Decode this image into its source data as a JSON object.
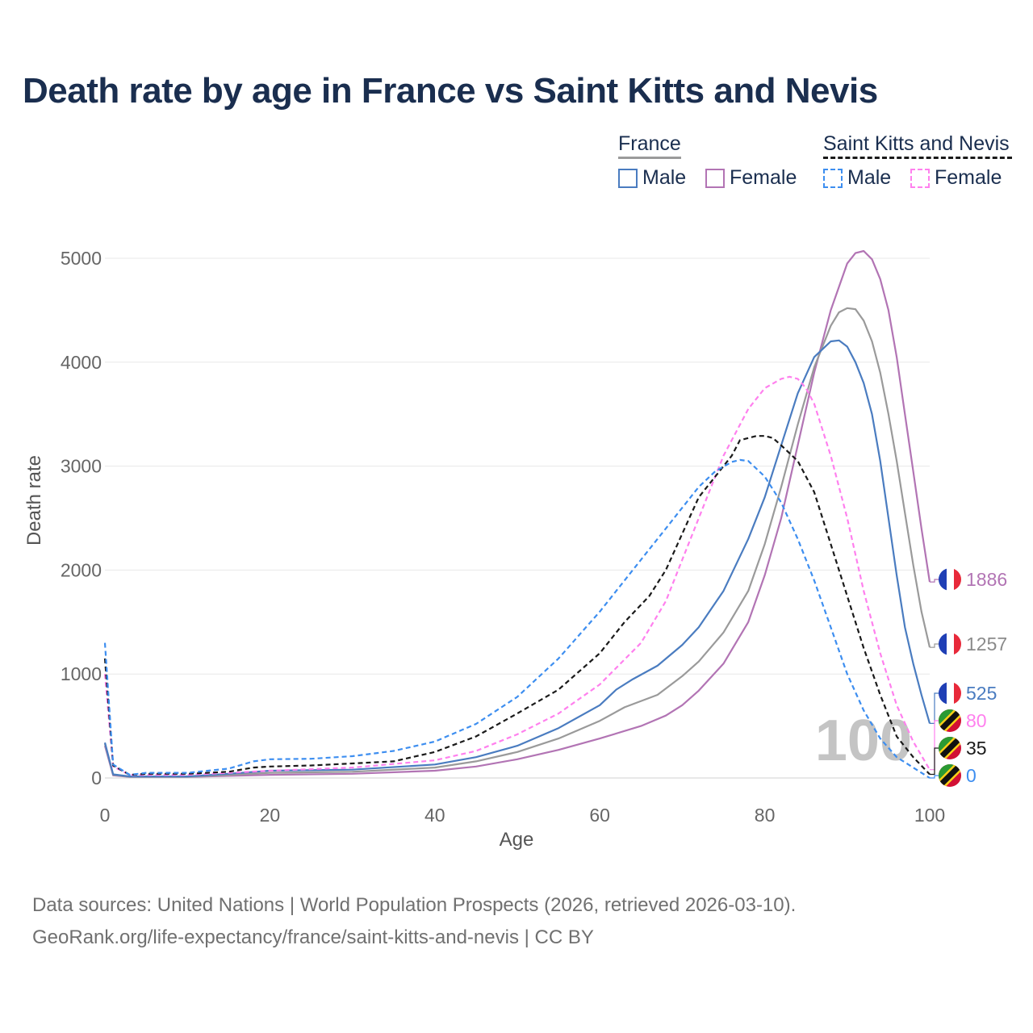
{
  "title": "Death rate by age in France vs Saint Kitts and Nevis",
  "legend": {
    "groups": [
      {
        "name": "France",
        "line_style": "solid",
        "line_color": "#9a9a9a",
        "items": [
          {
            "label": "Male",
            "color": "#4a7cc0"
          },
          {
            "label": "Female",
            "color": "#b274b4"
          }
        ]
      },
      {
        "name": "Saint Kitts and Nevis",
        "line_style": "dashed",
        "line_color": "#1a1a1a",
        "items": [
          {
            "label": "Male",
            "color": "#3d8ef0"
          },
          {
            "label": "Female",
            "color": "#ff80ee"
          }
        ]
      }
    ]
  },
  "watermark": "100",
  "footer": {
    "line1": "Data sources: United Nations | World Population Prospects (2026, retrieved 2026-03-10).",
    "line2": "GeoRank.org/life-expectancy/france/saint-kitts-and-nevis | CC BY"
  },
  "chart_data": {
    "type": "line",
    "title": "Death rate by age in France vs Saint Kitts and Nevis",
    "xlabel": "Age",
    "ylabel": "Death rate",
    "xlim": [
      0,
      100
    ],
    "ylim": [
      0,
      5000
    ],
    "xticks": [
      0,
      20,
      40,
      60,
      80,
      100
    ],
    "yticks": [
      0,
      1000,
      2000,
      3000,
      4000,
      5000
    ],
    "grid": true,
    "series": [
      {
        "name": "France Female",
        "country": "France",
        "sex": "Female",
        "color": "#b274b4",
        "dash": false,
        "points": [
          [
            0,
            310
          ],
          [
            1,
            25
          ],
          [
            3,
            10
          ],
          [
            5,
            10
          ],
          [
            10,
            10
          ],
          [
            15,
            20
          ],
          [
            20,
            30
          ],
          [
            30,
            40
          ],
          [
            40,
            70
          ],
          [
            45,
            110
          ],
          [
            50,
            180
          ],
          [
            55,
            270
          ],
          [
            60,
            380
          ],
          [
            65,
            500
          ],
          [
            68,
            600
          ],
          [
            70,
            700
          ],
          [
            72,
            840
          ],
          [
            75,
            1100
          ],
          [
            78,
            1500
          ],
          [
            80,
            1950
          ],
          [
            82,
            2500
          ],
          [
            84,
            3200
          ],
          [
            86,
            3900
          ],
          [
            88,
            4500
          ],
          [
            90,
            4950
          ],
          [
            91,
            5050
          ],
          [
            92,
            5070
          ],
          [
            93,
            4990
          ],
          [
            94,
            4800
          ],
          [
            95,
            4500
          ],
          [
            96,
            4050
          ],
          [
            97,
            3500
          ],
          [
            98,
            2950
          ],
          [
            99,
            2400
          ],
          [
            100,
            1886
          ]
        ],
        "end_label": "1886",
        "label_color": "#b274b4"
      },
      {
        "name": "France Total",
        "country": "France",
        "sex": "Total",
        "color": "#9a9a9a",
        "dash": false,
        "points": [
          [
            0,
            330
          ],
          [
            1,
            30
          ],
          [
            3,
            12
          ],
          [
            5,
            12
          ],
          [
            10,
            12
          ],
          [
            15,
            30
          ],
          [
            20,
            50
          ],
          [
            30,
            60
          ],
          [
            40,
            100
          ],
          [
            45,
            160
          ],
          [
            50,
            250
          ],
          [
            55,
            380
          ],
          [
            60,
            550
          ],
          [
            63,
            680
          ],
          [
            67,
            800
          ],
          [
            70,
            980
          ],
          [
            72,
            1120
          ],
          [
            75,
            1400
          ],
          [
            78,
            1800
          ],
          [
            80,
            2250
          ],
          [
            82,
            2800
          ],
          [
            84,
            3400
          ],
          [
            86,
            3950
          ],
          [
            88,
            4350
          ],
          [
            89,
            4480
          ],
          [
            90,
            4520
          ],
          [
            91,
            4510
          ],
          [
            92,
            4400
          ],
          [
            93,
            4200
          ],
          [
            94,
            3900
          ],
          [
            95,
            3500
          ],
          [
            96,
            3050
          ],
          [
            97,
            2550
          ],
          [
            98,
            2050
          ],
          [
            99,
            1600
          ],
          [
            100,
            1257
          ]
        ],
        "end_label": "1257",
        "label_color": "#8a8a8a"
      },
      {
        "name": "France Male",
        "country": "France",
        "sex": "Male",
        "color": "#4a7cc0",
        "dash": false,
        "points": [
          [
            0,
            340
          ],
          [
            1,
            35
          ],
          [
            3,
            15
          ],
          [
            5,
            15
          ],
          [
            10,
            15
          ],
          [
            15,
            40
          ],
          [
            20,
            70
          ],
          [
            30,
            80
          ],
          [
            40,
            130
          ],
          [
            45,
            200
          ],
          [
            50,
            310
          ],
          [
            55,
            480
          ],
          [
            60,
            700
          ],
          [
            62,
            850
          ],
          [
            64,
            950
          ],
          [
            67,
            1080
          ],
          [
            70,
            1280
          ],
          [
            72,
            1450
          ],
          [
            75,
            1800
          ],
          [
            78,
            2300
          ],
          [
            80,
            2700
          ],
          [
            82,
            3200
          ],
          [
            84,
            3700
          ],
          [
            86,
            4050
          ],
          [
            88,
            4200
          ],
          [
            89,
            4210
          ],
          [
            90,
            4150
          ],
          [
            91,
            4000
          ],
          [
            92,
            3800
          ],
          [
            93,
            3500
          ],
          [
            94,
            3050
          ],
          [
            95,
            2500
          ],
          [
            96,
            1950
          ],
          [
            97,
            1450
          ],
          [
            98,
            1100
          ],
          [
            99,
            800
          ],
          [
            100,
            525
          ]
        ],
        "end_label": "525",
        "label_color": "#4a7cc0"
      },
      {
        "name": "Saint Kitts and Nevis Female",
        "country": "Saint Kitts and Nevis",
        "sex": "Female",
        "color": "#ff80ee",
        "dash": true,
        "points": [
          [
            0,
            1000
          ],
          [
            1,
            110
          ],
          [
            3,
            30
          ],
          [
            5,
            30
          ],
          [
            10,
            30
          ],
          [
            15,
            50
          ],
          [
            20,
            70
          ],
          [
            30,
            100
          ],
          [
            40,
            170
          ],
          [
            45,
            260
          ],
          [
            50,
            420
          ],
          [
            55,
            620
          ],
          [
            60,
            900
          ],
          [
            65,
            1300
          ],
          [
            68,
            1700
          ],
          [
            70,
            2100
          ],
          [
            73,
            2700
          ],
          [
            75,
            3100
          ],
          [
            78,
            3550
          ],
          [
            80,
            3750
          ],
          [
            82,
            3840
          ],
          [
            83,
            3860
          ],
          [
            84,
            3840
          ],
          [
            85,
            3750
          ],
          [
            86,
            3600
          ],
          [
            88,
            3100
          ],
          [
            90,
            2500
          ],
          [
            92,
            1800
          ],
          [
            94,
            1200
          ],
          [
            96,
            700
          ],
          [
            98,
            350
          ],
          [
            100,
            80
          ]
        ],
        "end_label": "80",
        "label_color": "#ff80ee"
      },
      {
        "name": "Saint Kitts and Nevis Total",
        "country": "Saint Kitts and Nevis",
        "sex": "Total",
        "color": "#1a1a1a",
        "dash": true,
        "points": [
          [
            0,
            1150
          ],
          [
            1,
            120
          ],
          [
            3,
            30
          ],
          [
            5,
            40
          ],
          [
            10,
            40
          ],
          [
            15,
            60
          ],
          [
            18,
            100
          ],
          [
            20,
            110
          ],
          [
            25,
            120
          ],
          [
            30,
            140
          ],
          [
            35,
            160
          ],
          [
            40,
            250
          ],
          [
            45,
            400
          ],
          [
            50,
            620
          ],
          [
            55,
            850
          ],
          [
            60,
            1200
          ],
          [
            63,
            1500
          ],
          [
            66,
            1750
          ],
          [
            68,
            2000
          ],
          [
            70,
            2350
          ],
          [
            72,
            2700
          ],
          [
            74,
            2900
          ],
          [
            76,
            3100
          ],
          [
            77,
            3250
          ],
          [
            79,
            3290
          ],
          [
            80,
            3290
          ],
          [
            81,
            3270
          ],
          [
            82,
            3200
          ],
          [
            84,
            3050
          ],
          [
            86,
            2750
          ],
          [
            88,
            2250
          ],
          [
            90,
            1750
          ],
          [
            92,
            1250
          ],
          [
            94,
            800
          ],
          [
            96,
            400
          ],
          [
            98,
            200
          ],
          [
            100,
            35
          ]
        ],
        "end_label": "35",
        "label_color": "#1a1a1a"
      },
      {
        "name": "Saint Kitts and Nevis Male",
        "country": "Saint Kitts and Nevis",
        "sex": "Male",
        "color": "#3d8ef0",
        "dash": true,
        "points": [
          [
            0,
            1300
          ],
          [
            1,
            130
          ],
          [
            3,
            30
          ],
          [
            5,
            50
          ],
          [
            10,
            50
          ],
          [
            15,
            90
          ],
          [
            18,
            160
          ],
          [
            20,
            180
          ],
          [
            25,
            185
          ],
          [
            30,
            210
          ],
          [
            35,
            260
          ],
          [
            40,
            350
          ],
          [
            45,
            520
          ],
          [
            50,
            780
          ],
          [
            55,
            1150
          ],
          [
            60,
            1600
          ],
          [
            65,
            2100
          ],
          [
            68,
            2400
          ],
          [
            70,
            2600
          ],
          [
            72,
            2800
          ],
          [
            74,
            2950
          ],
          [
            76,
            3040
          ],
          [
            77,
            3060
          ],
          [
            78,
            3050
          ],
          [
            80,
            2900
          ],
          [
            82,
            2650
          ],
          [
            84,
            2300
          ],
          [
            86,
            1900
          ],
          [
            88,
            1450
          ],
          [
            90,
            1000
          ],
          [
            92,
            650
          ],
          [
            94,
            380
          ],
          [
            96,
            200
          ],
          [
            98,
            100
          ],
          [
            100,
            0
          ]
        ],
        "end_label": "0",
        "label_color": "#3d8ef0"
      }
    ]
  }
}
